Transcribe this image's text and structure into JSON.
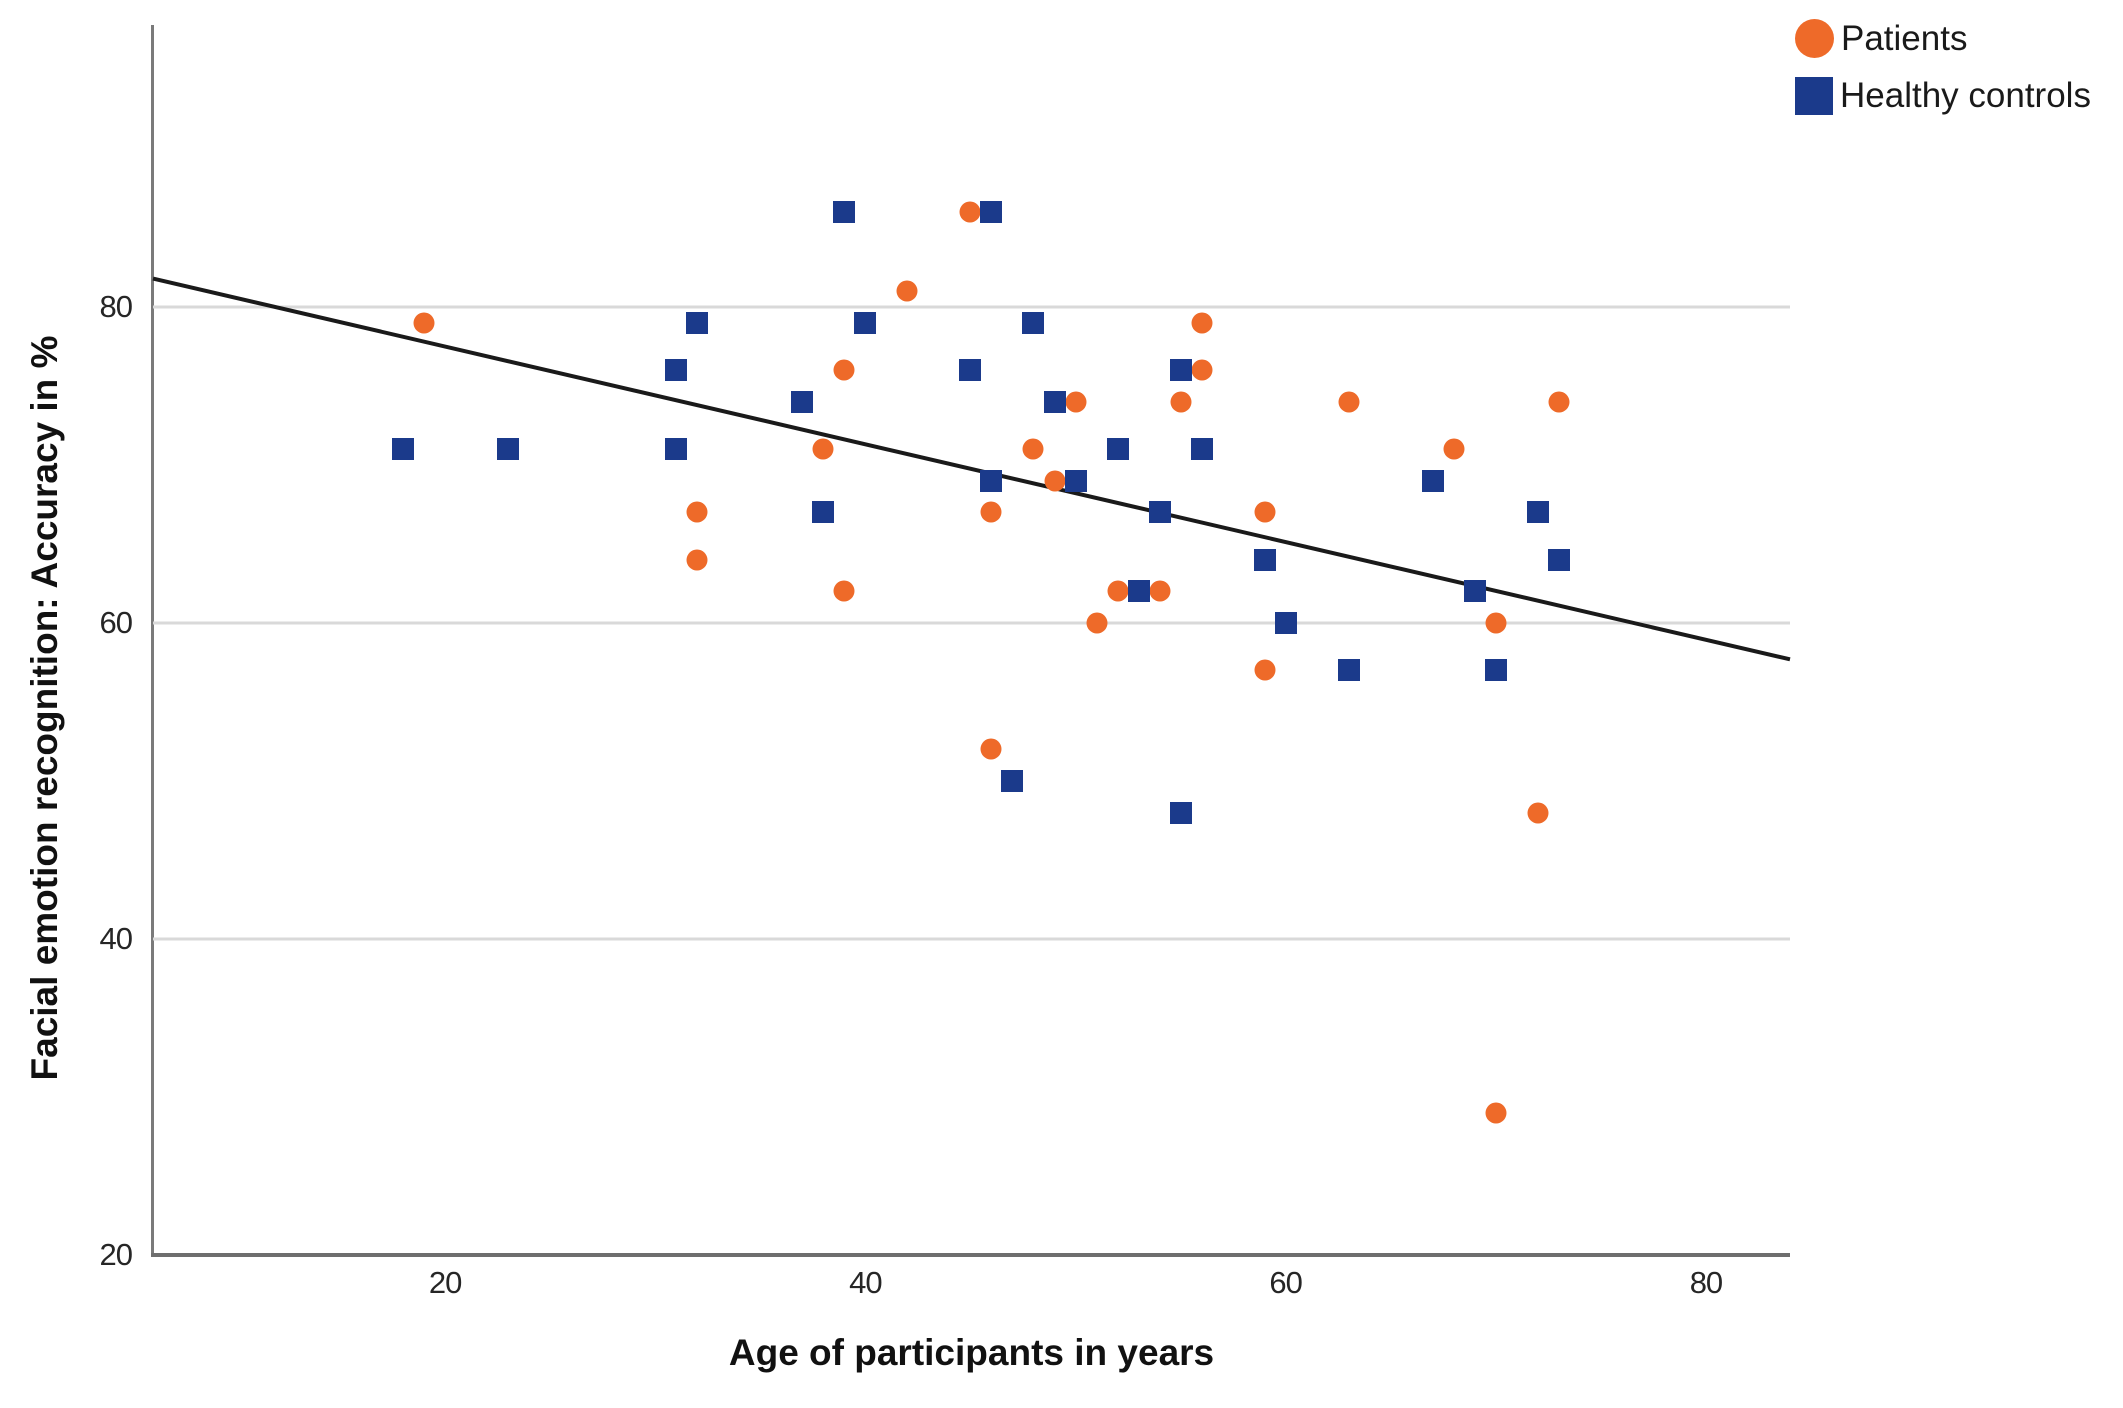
{
  "chart_data": {
    "type": "scatter",
    "title": "",
    "xlabel": "Age of participants in years",
    "ylabel": "Facial emotion recognition: Accuracy in %",
    "xlim": [
      6.1,
      84
    ],
    "ylim": [
      20,
      97.85
    ],
    "x_ticks": [
      20,
      40,
      60,
      80
    ],
    "y_ticks": [
      20,
      40,
      60,
      80
    ],
    "gridlines_y": [
      40,
      60,
      80
    ],
    "grid": "horizontal-only",
    "legend_position": "top-right",
    "axis_color": "#6e6e6e",
    "grid_color": "#d9d9d9",
    "series": [
      {
        "name": "Patients",
        "marker": "circle",
        "color": "#ee6a29",
        "points": [
          [
            19,
            79
          ],
          [
            32,
            67
          ],
          [
            32,
            64
          ],
          [
            42,
            81
          ],
          [
            45,
            86
          ],
          [
            39,
            76
          ],
          [
            38,
            71
          ],
          [
            39,
            62
          ],
          [
            50,
            74
          ],
          [
            48,
            71
          ],
          [
            49,
            69
          ],
          [
            46,
            67
          ],
          [
            46,
            52
          ],
          [
            51,
            60
          ],
          [
            52,
            62
          ],
          [
            54,
            62
          ],
          [
            56,
            79
          ],
          [
            56,
            76
          ],
          [
            55,
            74
          ],
          [
            63,
            74
          ],
          [
            59,
            67
          ],
          [
            59,
            57
          ],
          [
            68,
            71
          ],
          [
            70,
            60
          ],
          [
            73,
            74
          ],
          [
            72,
            48
          ],
          [
            70,
            29
          ]
        ]
      },
      {
        "name": "Healthy controls",
        "marker": "square",
        "color": "#1b3a8b",
        "points": [
          [
            18,
            71
          ],
          [
            23,
            71
          ],
          [
            31,
            76
          ],
          [
            32,
            79
          ],
          [
            31,
            71
          ],
          [
            39,
            86
          ],
          [
            46,
            86
          ],
          [
            40,
            79
          ],
          [
            48,
            79
          ],
          [
            45,
            76
          ],
          [
            37,
            74
          ],
          [
            49,
            74
          ],
          [
            38,
            67
          ],
          [
            46,
            69
          ],
          [
            50,
            69
          ],
          [
            52,
            71
          ],
          [
            56,
            71
          ],
          [
            54,
            67
          ],
          [
            55,
            76
          ],
          [
            53,
            62
          ],
          [
            59,
            64
          ],
          [
            60,
            60
          ],
          [
            63,
            57
          ],
          [
            67,
            69
          ],
          [
            69,
            62
          ],
          [
            70,
            57
          ],
          [
            72,
            67
          ],
          [
            73,
            64
          ],
          [
            47,
            50
          ],
          [
            55,
            48
          ]
        ]
      }
    ],
    "trendline": {
      "x1": 6.1,
      "y1": 81.8,
      "x2": 84.0,
      "y2": 57.7,
      "color": "#1a1a1a",
      "width": 4
    }
  }
}
